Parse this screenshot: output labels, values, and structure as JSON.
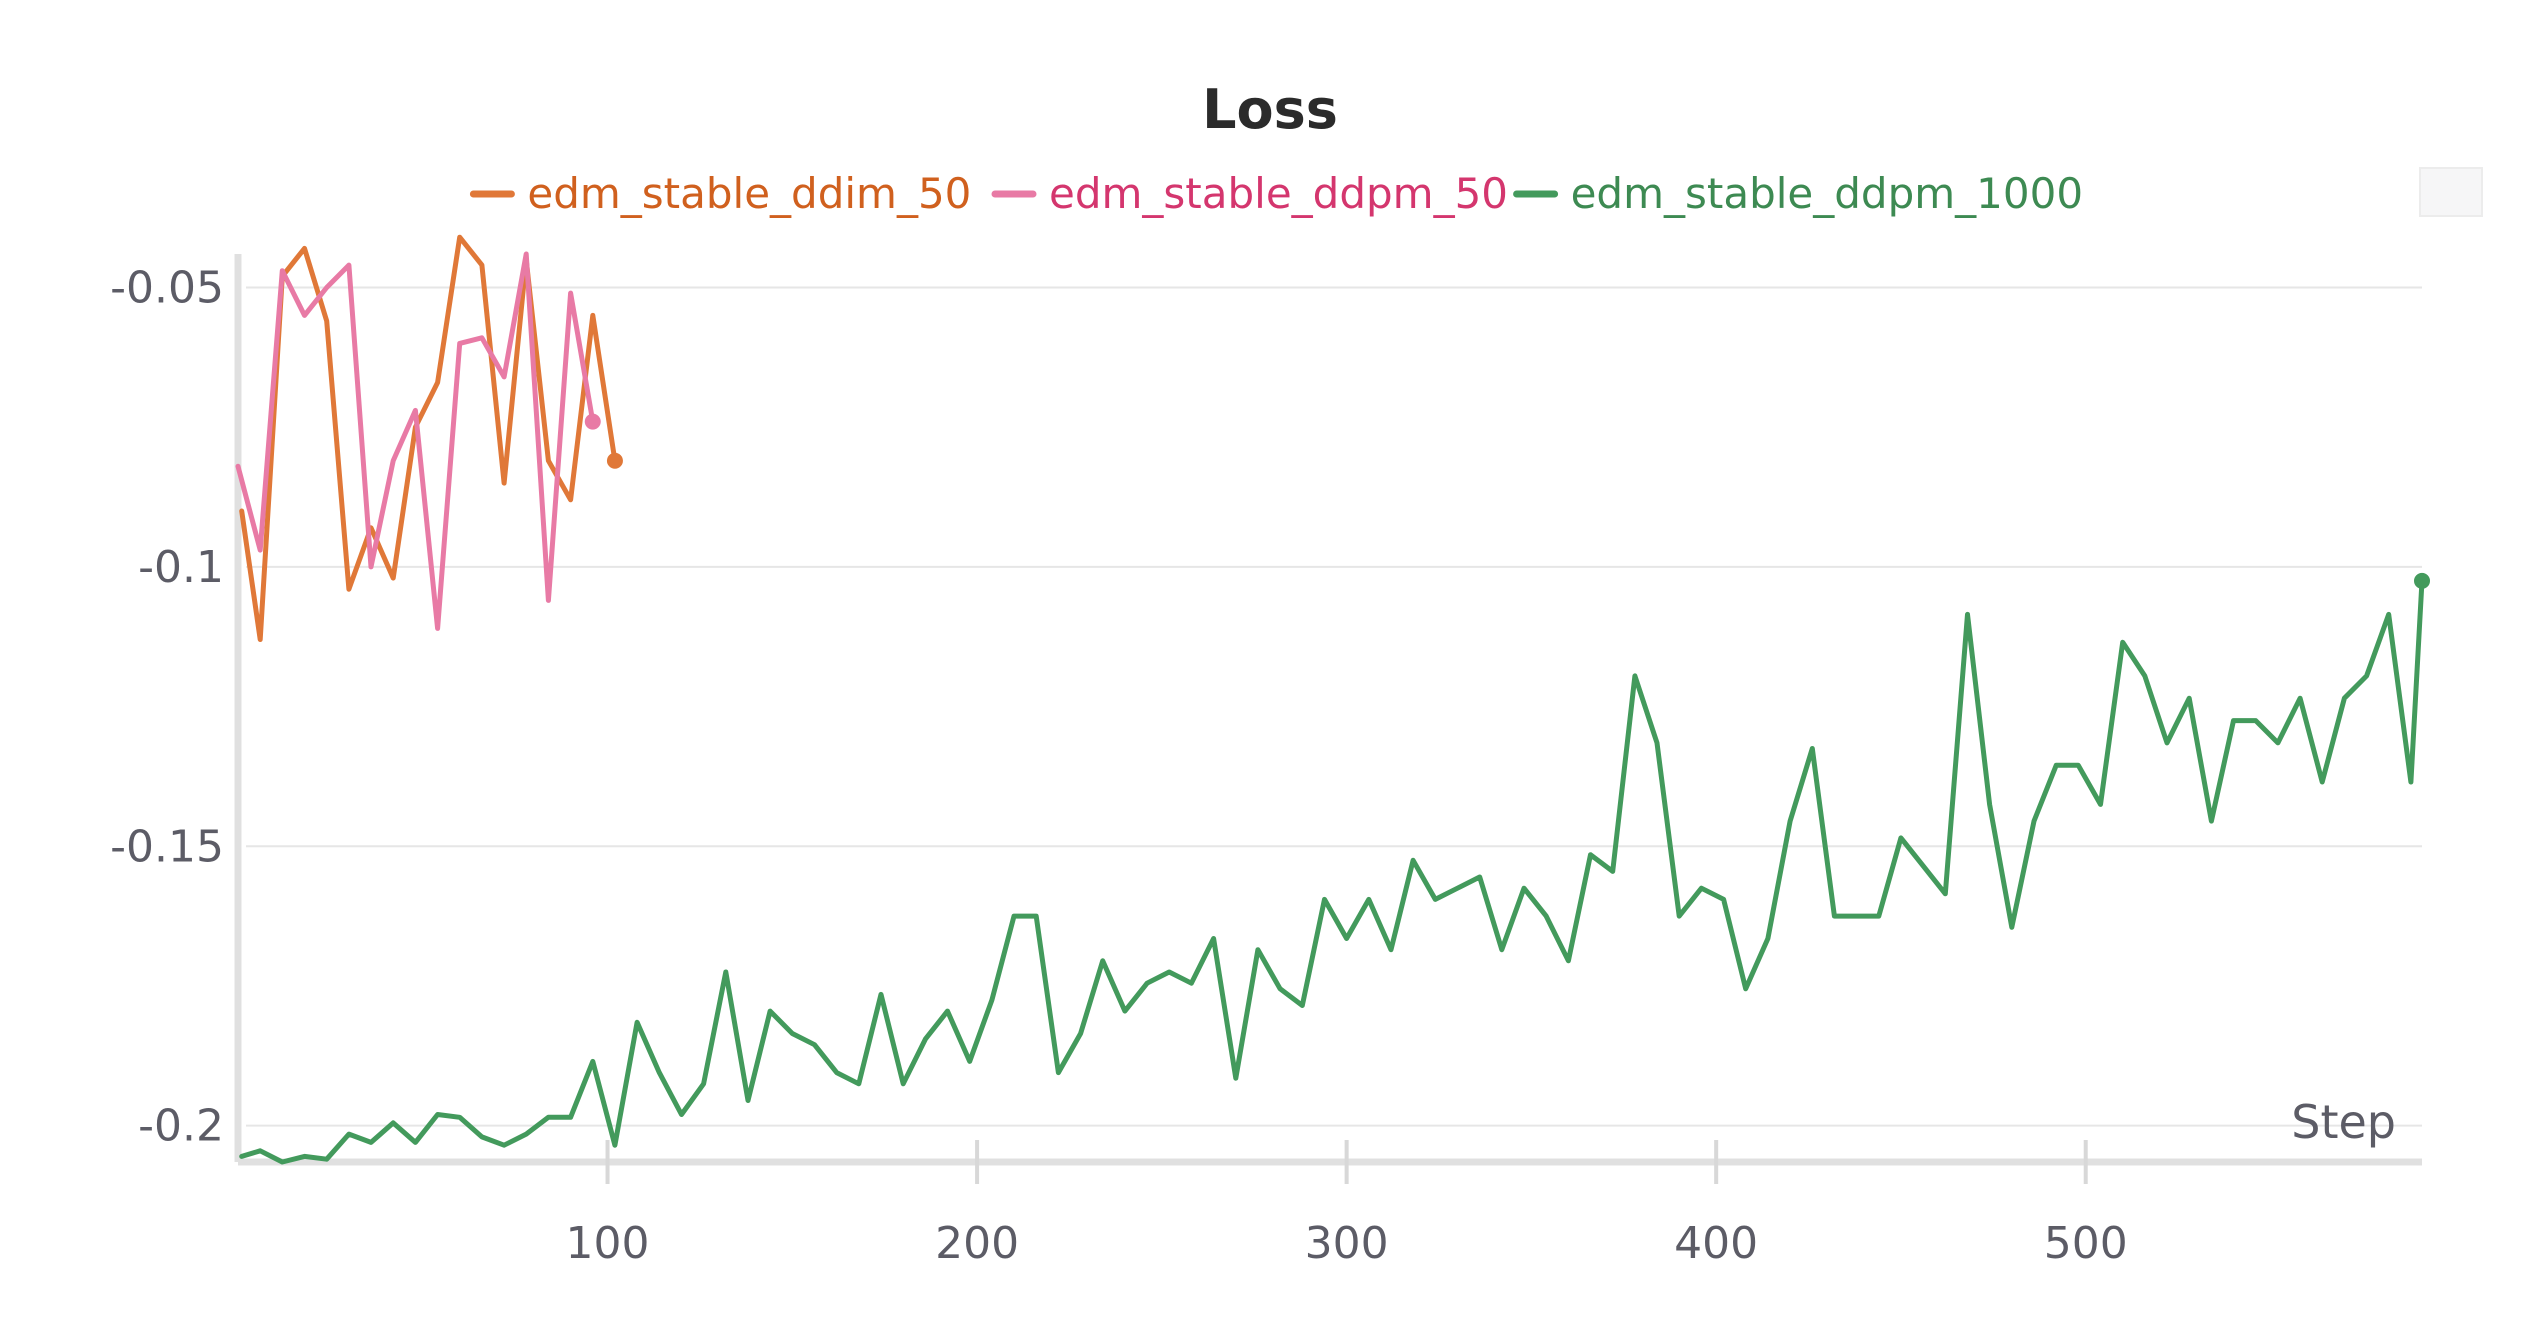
{
  "chart_data": {
    "type": "line",
    "title": "Loss",
    "xlabel": "Step",
    "ylabel": "",
    "xlim": [
      0,
      591
    ],
    "ylim": [
      -0.2065,
      -0.0415
    ],
    "x_ticks": [
      100,
      200,
      300,
      400,
      500
    ],
    "y_ticks": [
      -0.05,
      -0.1,
      -0.15,
      -0.2
    ],
    "y_tick_labels": [
      "-0.05",
      "-0.1",
      "-0.15",
      "-0.2"
    ],
    "grid": true,
    "legend_position": "top",
    "series": [
      {
        "name": "edm_stable_ddim_50",
        "color": "#e07838",
        "label_color": "#d0601e",
        "x": [
          1,
          6,
          12,
          18,
          24,
          30,
          36,
          42,
          48,
          54,
          60,
          66,
          72,
          78,
          84,
          90,
          96,
          102
        ],
        "y": [
          -0.09,
          -0.113,
          -0.048,
          -0.043,
          -0.056,
          -0.104,
          -0.093,
          -0.102,
          -0.075,
          -0.067,
          -0.041,
          -0.046,
          -0.085,
          -0.045,
          -0.081,
          -0.088,
          -0.055,
          -0.081
        ],
        "end_marker": true
      },
      {
        "name": "edm_stable_ddpm_50",
        "color": "#e87aa5",
        "label_color": "#d4366e",
        "x": [
          0,
          6,
          12,
          18,
          24,
          30,
          36,
          42,
          48,
          54,
          60,
          66,
          72,
          78,
          84,
          90,
          96
        ],
        "y": [
          -0.082,
          -0.097,
          -0.047,
          -0.055,
          -0.05,
          -0.046,
          -0.1,
          -0.081,
          -0.072,
          -0.111,
          -0.06,
          -0.059,
          -0.066,
          -0.044,
          -0.106,
          -0.051,
          -0.074
        ],
        "end_marker": true
      },
      {
        "name": "edm_stable_ddpm_1000",
        "color": "#439a5c",
        "label_color": "#3d8a52",
        "x": [
          1,
          6,
          12,
          18,
          24,
          30,
          36,
          42,
          48,
          54,
          60,
          66,
          72,
          78,
          84,
          90,
          96,
          102,
          108,
          114,
          120,
          126,
          132,
          138,
          144,
          150,
          156,
          162,
          168,
          174,
          180,
          186,
          192,
          198,
          204,
          210,
          216,
          222,
          228,
          234,
          240,
          246,
          252,
          258,
          264,
          270,
          276,
          282,
          288,
          294,
          300,
          306,
          312,
          318,
          324,
          330,
          336,
          342,
          348,
          354,
          360,
          366,
          372,
          378,
          384,
          390,
          396,
          402,
          408,
          414,
          420,
          426,
          432,
          438,
          444,
          450,
          456,
          462,
          468,
          474,
          480,
          486,
          492,
          498,
          504,
          510,
          516,
          522,
          528,
          534,
          540,
          546,
          552,
          558,
          564,
          570,
          576,
          582,
          588,
          591
        ],
        "y": [
          -0.2055,
          -0.2045,
          -0.2065,
          -0.2055,
          -0.206,
          -0.2015,
          -0.203,
          -0.1995,
          -0.203,
          -0.198,
          -0.1985,
          -0.202,
          -0.2035,
          -0.2015,
          -0.1985,
          -0.1985,
          -0.1885,
          -0.2035,
          -0.1815,
          -0.1905,
          -0.198,
          -0.1925,
          -0.1725,
          -0.1955,
          -0.1795,
          -0.1835,
          -0.1855,
          -0.1905,
          -0.1925,
          -0.1765,
          -0.1925,
          -0.1845,
          -0.1795,
          -0.1885,
          -0.1775,
          -0.1625,
          -0.1625,
          -0.1905,
          -0.1835,
          -0.1705,
          -0.1795,
          -0.1745,
          -0.1725,
          -0.1745,
          -0.1665,
          -0.1915,
          -0.1685,
          -0.1755,
          -0.1785,
          -0.1595,
          -0.1665,
          -0.1595,
          -0.1685,
          -0.1525,
          -0.1595,
          -0.1575,
          -0.1555,
          -0.1685,
          -0.1575,
          -0.1625,
          -0.1705,
          -0.1515,
          -0.1545,
          -0.1195,
          -0.1315,
          -0.1625,
          -0.1575,
          -0.1595,
          -0.1755,
          -0.1665,
          -0.1455,
          -0.1325,
          -0.1625,
          -0.1625,
          -0.1625,
          -0.1485,
          -0.1535,
          -0.1585,
          -0.1085,
          -0.1425,
          -0.1645,
          -0.1455,
          -0.1355,
          -0.1355,
          -0.1425,
          -0.1135,
          -0.1195,
          -0.1315,
          -0.1235,
          -0.1455,
          -0.1275,
          -0.1275,
          -0.1315,
          -0.1235,
          -0.1385,
          -0.1235,
          -0.1195,
          -0.1085,
          -0.1385,
          -0.1025
        ],
        "end_marker": true
      }
    ]
  }
}
